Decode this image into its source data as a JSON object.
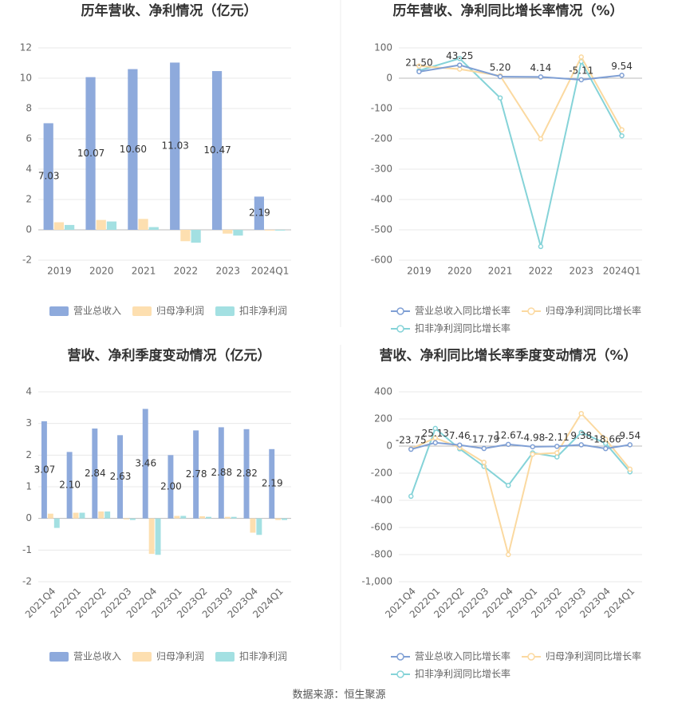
{
  "chart_data": [
    {
      "type": "bar",
      "title": "历年营收、净利情况（亿元）",
      "categories": [
        "2019",
        "2020",
        "2021",
        "2022",
        "2023",
        "2024Q1"
      ],
      "series": [
        {
          "name": "营业总收入",
          "color": "#8eaadc",
          "values": [
            7.03,
            10.07,
            10.6,
            11.03,
            10.47,
            2.19
          ],
          "value_labels": [
            "7.03",
            "10.07",
            "10.60",
            "11.03",
            "10.47",
            "2.19"
          ]
        },
        {
          "name": "归母净利润",
          "color": "#fddfb0",
          "values": [
            0.5,
            0.65,
            0.72,
            -0.75,
            -0.25,
            -0.05
          ]
        },
        {
          "name": "扣非净利润",
          "color": "#a3e0e2",
          "values": [
            0.32,
            0.55,
            0.18,
            -0.85,
            -0.38,
            -0.05
          ]
        }
      ],
      "ylim": [
        -2,
        12
      ],
      "yticks": [
        -2,
        0,
        2,
        4,
        6,
        8,
        10,
        12
      ],
      "grid": true
    },
    {
      "type": "line",
      "title": "历年营收、净利同比增长率情况（%）",
      "categories": [
        "2019",
        "2020",
        "2021",
        "2022",
        "2023",
        "2024Q1"
      ],
      "series": [
        {
          "name": "营业总收入同比增长率",
          "color": "#7f9fd4",
          "values": [
            21.5,
            43.25,
            5.2,
            4.14,
            -5.11,
            9.54
          ],
          "value_labels": [
            "21.50",
            "43.25",
            "5.20",
            "4.14",
            "-5.11",
            "9.54"
          ]
        },
        {
          "name": "归母净利润同比增长率",
          "color": "#fbd9a0",
          "values": [
            40,
            30,
            8,
            -200,
            70,
            -170
          ]
        },
        {
          "name": "扣非净利润同比增长率",
          "color": "#85d3d8",
          "values": [
            25,
            65,
            -65,
            -555,
            55,
            -190
          ]
        }
      ],
      "ylim": [
        -600,
        100
      ],
      "yticks": [
        -600,
        -500,
        -400,
        -300,
        -200,
        -100,
        0,
        100
      ],
      "grid": true
    },
    {
      "type": "bar",
      "title": "营收、净利季度变动情况（亿元）",
      "categories": [
        "2021Q4",
        "2022Q1",
        "2022Q2",
        "2022Q3",
        "2022Q4",
        "2023Q1",
        "2023Q2",
        "2023Q3",
        "2023Q4",
        "2024Q1"
      ],
      "series": [
        {
          "name": "营业总收入",
          "color": "#8eaadc",
          "values": [
            3.07,
            2.1,
            2.84,
            2.63,
            3.46,
            2.0,
            2.78,
            2.88,
            2.82,
            2.19
          ],
          "value_labels": [
            "3.07",
            "2.10",
            "2.84",
            "2.63",
            "3.46",
            "2.00",
            "2.78",
            "2.88",
            "2.82",
            "2.19"
          ]
        },
        {
          "name": "归母净利润",
          "color": "#fddfb0",
          "values": [
            0.15,
            0.18,
            0.22,
            -0.03,
            -1.12,
            0.08,
            0.07,
            0.05,
            -0.45,
            -0.05
          ]
        },
        {
          "name": "扣非净利润",
          "color": "#a3e0e2",
          "values": [
            -0.3,
            0.18,
            0.22,
            -0.05,
            -1.15,
            0.08,
            0.05,
            0.05,
            -0.52,
            -0.05
          ]
        }
      ],
      "ylim": [
        -2,
        4
      ],
      "yticks": [
        -2,
        -1,
        0,
        1,
        2,
        3,
        4
      ],
      "grid": true
    },
    {
      "type": "line",
      "title": "营收、净利同比增长率季度变动情况（%）",
      "categories": [
        "2021Q4",
        "2022Q1",
        "2022Q2",
        "2022Q3",
        "2022Q4",
        "2023Q1",
        "2023Q2",
        "2023Q3",
        "2023Q4",
        "2024Q1"
      ],
      "series": [
        {
          "name": "营业总收入同比增长率",
          "color": "#7f9fd4",
          "values": [
            -23.75,
            25.13,
            7.46,
            -17.79,
            12.67,
            -4.98,
            -2.11,
            9.38,
            -18.66,
            9.54
          ],
          "value_labels": [
            "-23.75",
            "25.13",
            "7.46",
            "-17.79",
            "12.67",
            "-4.98",
            "-2.11",
            "9.38",
            "-18.66",
            "9.54"
          ]
        },
        {
          "name": "归母净利润同比增长率",
          "color": "#fbd9a0",
          "values": [
            -20,
            60,
            -10,
            -120,
            -800,
            -60,
            -50,
            240,
            50,
            -170
          ]
        },
        {
          "name": "扣非净利润同比增长率",
          "color": "#85d3d8",
          "values": [
            -370,
            130,
            -20,
            -150,
            -290,
            -50,
            -80,
            100,
            20,
            -190
          ]
        }
      ],
      "ylim": [
        -1000,
        400
      ],
      "yticks": [
        {
          "value": -1000,
          "label": "-1,000"
        },
        -800,
        -600,
        -400,
        -200,
        0,
        200,
        400
      ],
      "grid": true
    }
  ],
  "source": "数据来源：恒生聚源"
}
